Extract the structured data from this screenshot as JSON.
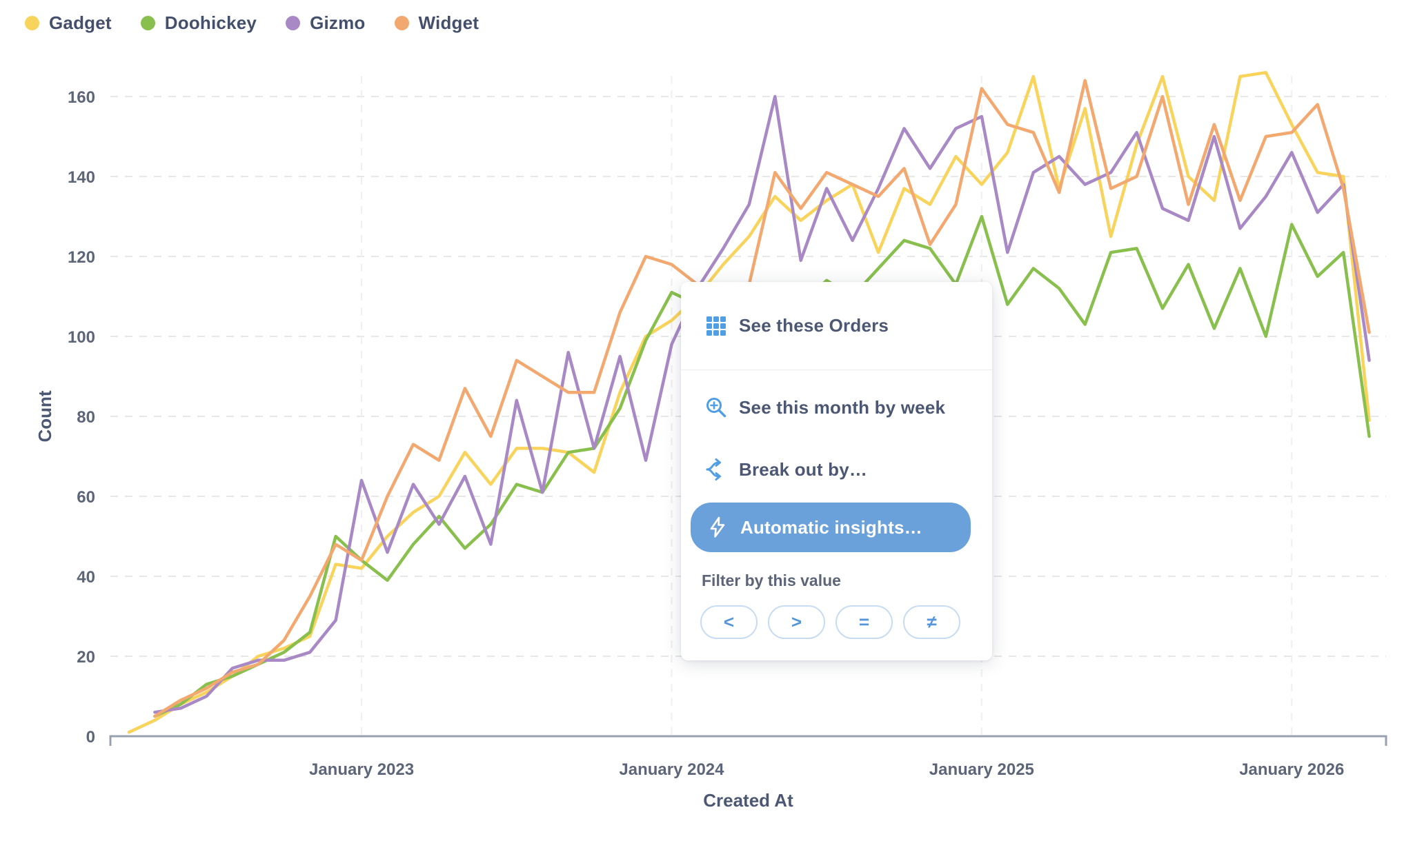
{
  "legend": {
    "items": [
      {
        "label": "Gadget",
        "color": "#F9D45C"
      },
      {
        "label": "Doohickey",
        "color": "#88BF4D"
      },
      {
        "label": "Gizmo",
        "color": "#A989C5"
      },
      {
        "label": "Widget",
        "color": "#F2A86F"
      }
    ]
  },
  "chart_data": {
    "type": "line",
    "xlabel": "Created At",
    "ylabel": "Count",
    "x_start_month": "April 2022",
    "x_interval": "month",
    "x_tick_labels": [
      "January 2023",
      "January 2024",
      "January 2025",
      "January 2026"
    ],
    "x_tick_month_index": [
      9,
      21,
      33,
      45
    ],
    "y_ticks": [
      0,
      20,
      40,
      60,
      80,
      100,
      120,
      140,
      160
    ],
    "ylim": [
      0,
      170
    ],
    "grid": "dashed horizontal gridlines at each y tick; faint dashed vertical gridlines at each January tick",
    "legend_position": "top-left",
    "series": [
      {
        "name": "Gadget",
        "color": "#F9D45C",
        "values": [
          1,
          4,
          8,
          11,
          15,
          20,
          22,
          25,
          43,
          42,
          50,
          56,
          60,
          71,
          63,
          72,
          72,
          71,
          66,
          86,
          100,
          104,
          110,
          118,
          125,
          135,
          129,
          134,
          138,
          121,
          137,
          133,
          145,
          138,
          146,
          165,
          137,
          157,
          125,
          148,
          165,
          140,
          134,
          165,
          166,
          153,
          141,
          140,
          79
        ]
      },
      {
        "name": "Doohickey",
        "color": "#88BF4D",
        "values": [
          null,
          5,
          8,
          13,
          15,
          18,
          21,
          26,
          50,
          44,
          39,
          48,
          55,
          47,
          53,
          63,
          61,
          71,
          72,
          82,
          99,
          111,
          108,
          112,
          106,
          113,
          108,
          114,
          110,
          117,
          124,
          122,
          113,
          130,
          108,
          117,
          112,
          103,
          121,
          122,
          107,
          118,
          102,
          117,
          100,
          128,
          115,
          121,
          75
        ]
      },
      {
        "name": "Gizmo",
        "color": "#A989C5",
        "values": [
          null,
          6,
          7,
          10,
          17,
          19,
          19,
          21,
          29,
          64,
          46,
          63,
          53,
          65,
          48,
          84,
          61,
          96,
          72,
          95,
          69,
          98,
          112,
          122,
          133,
          160,
          119,
          137,
          124,
          137,
          152,
          142,
          152,
          155,
          121,
          141,
          145,
          138,
          141,
          151,
          132,
          129,
          150,
          127,
          135,
          146,
          131,
          138,
          94
        ]
      },
      {
        "name": "Widget",
        "color": "#F2A86F",
        "values": [
          null,
          5,
          9,
          12,
          16,
          18,
          24,
          35,
          48,
          44,
          60,
          73,
          69,
          87,
          75,
          94,
          90,
          86,
          86,
          106,
          120,
          118,
          113,
          105,
          113,
          141,
          132,
          141,
          138,
          135,
          142,
          123,
          133,
          162,
          153,
          151,
          136,
          164,
          137,
          140,
          160,
          133,
          153,
          134,
          150,
          151,
          158,
          137,
          101
        ]
      }
    ]
  },
  "popup": {
    "items": [
      {
        "label": "See these Orders",
        "icon": "table-icon",
        "group": "primary",
        "highlighted": false
      },
      {
        "label": "See this month by week",
        "icon": "zoom-in-icon",
        "group": "zoom",
        "highlighted": false
      },
      {
        "label": "Break out by…",
        "icon": "breakout-icon",
        "group": "breakout",
        "highlighted": false
      },
      {
        "label": "Automatic insights…",
        "icon": "bolt-icon",
        "group": "insights",
        "highlighted": true
      }
    ],
    "filter_section": {
      "label": "Filter by this value",
      "operators": [
        "<",
        ">",
        "=",
        "≠"
      ]
    },
    "colors": {
      "accent": "#509EE3",
      "highlight_bg": "#6BA1DB",
      "highlight_text": "#FFFFFF",
      "text": "#4C5773",
      "pill_border": "#C7DCF2",
      "pill_glyph": "#5796D8"
    }
  }
}
